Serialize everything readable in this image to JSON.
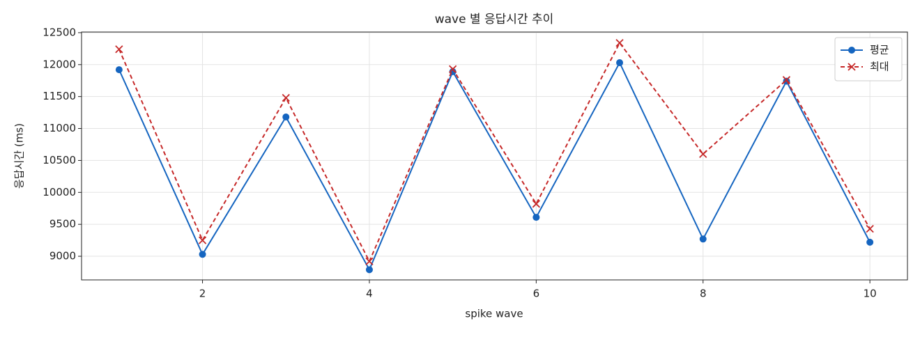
{
  "chart_data": {
    "type": "line",
    "title": "wave 별 응답시간 추이",
    "xlabel": "spike wave",
    "ylabel": "응답시간 (ms)",
    "x": [
      1,
      2,
      3,
      4,
      5,
      6,
      7,
      8,
      9,
      10
    ],
    "series": [
      {
        "name": "평균",
        "color": "#1565c0",
        "marker": "o",
        "dash": "solid",
        "values": [
          11920,
          9030,
          11180,
          8790,
          11890,
          9610,
          12030,
          9270,
          11740,
          9220
        ]
      },
      {
        "name": "최대",
        "color": "#c62828",
        "marker": "x",
        "dash": "dashed",
        "values": [
          12240,
          9250,
          11480,
          8920,
          11930,
          9820,
          12340,
          10600,
          11760,
          9430
        ]
      }
    ],
    "xlim": [
      0.55,
      10.45
    ],
    "ylim": [
      8630,
      12510
    ],
    "xticks": [
      2,
      4,
      6,
      8,
      10
    ],
    "yticks": [
      9000,
      9500,
      10000,
      10500,
      11000,
      11500,
      12000,
      12500
    ],
    "grid": true,
    "legend": "upper right"
  }
}
